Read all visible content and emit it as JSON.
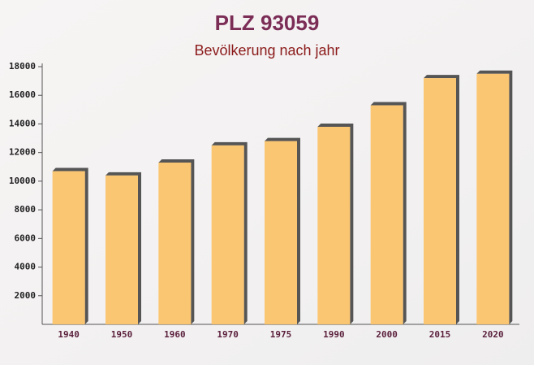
{
  "chart_data": {
    "type": "bar",
    "title": "PLZ 93059",
    "subtitle": "Bevölkerung nach jahr",
    "categories": [
      "1940",
      "1950",
      "1960",
      "1970",
      "1975",
      "1990",
      "2000",
      "2015",
      "2020"
    ],
    "values": [
      10700,
      10400,
      11300,
      12500,
      12800,
      13800,
      15300,
      17200,
      17500
    ],
    "color": "#fbc36a",
    "ylim": [
      0,
      18000
    ],
    "yticks": [
      2000,
      4000,
      6000,
      8000,
      10000,
      12000,
      14000,
      16000,
      18000
    ],
    "grid": false
  }
}
